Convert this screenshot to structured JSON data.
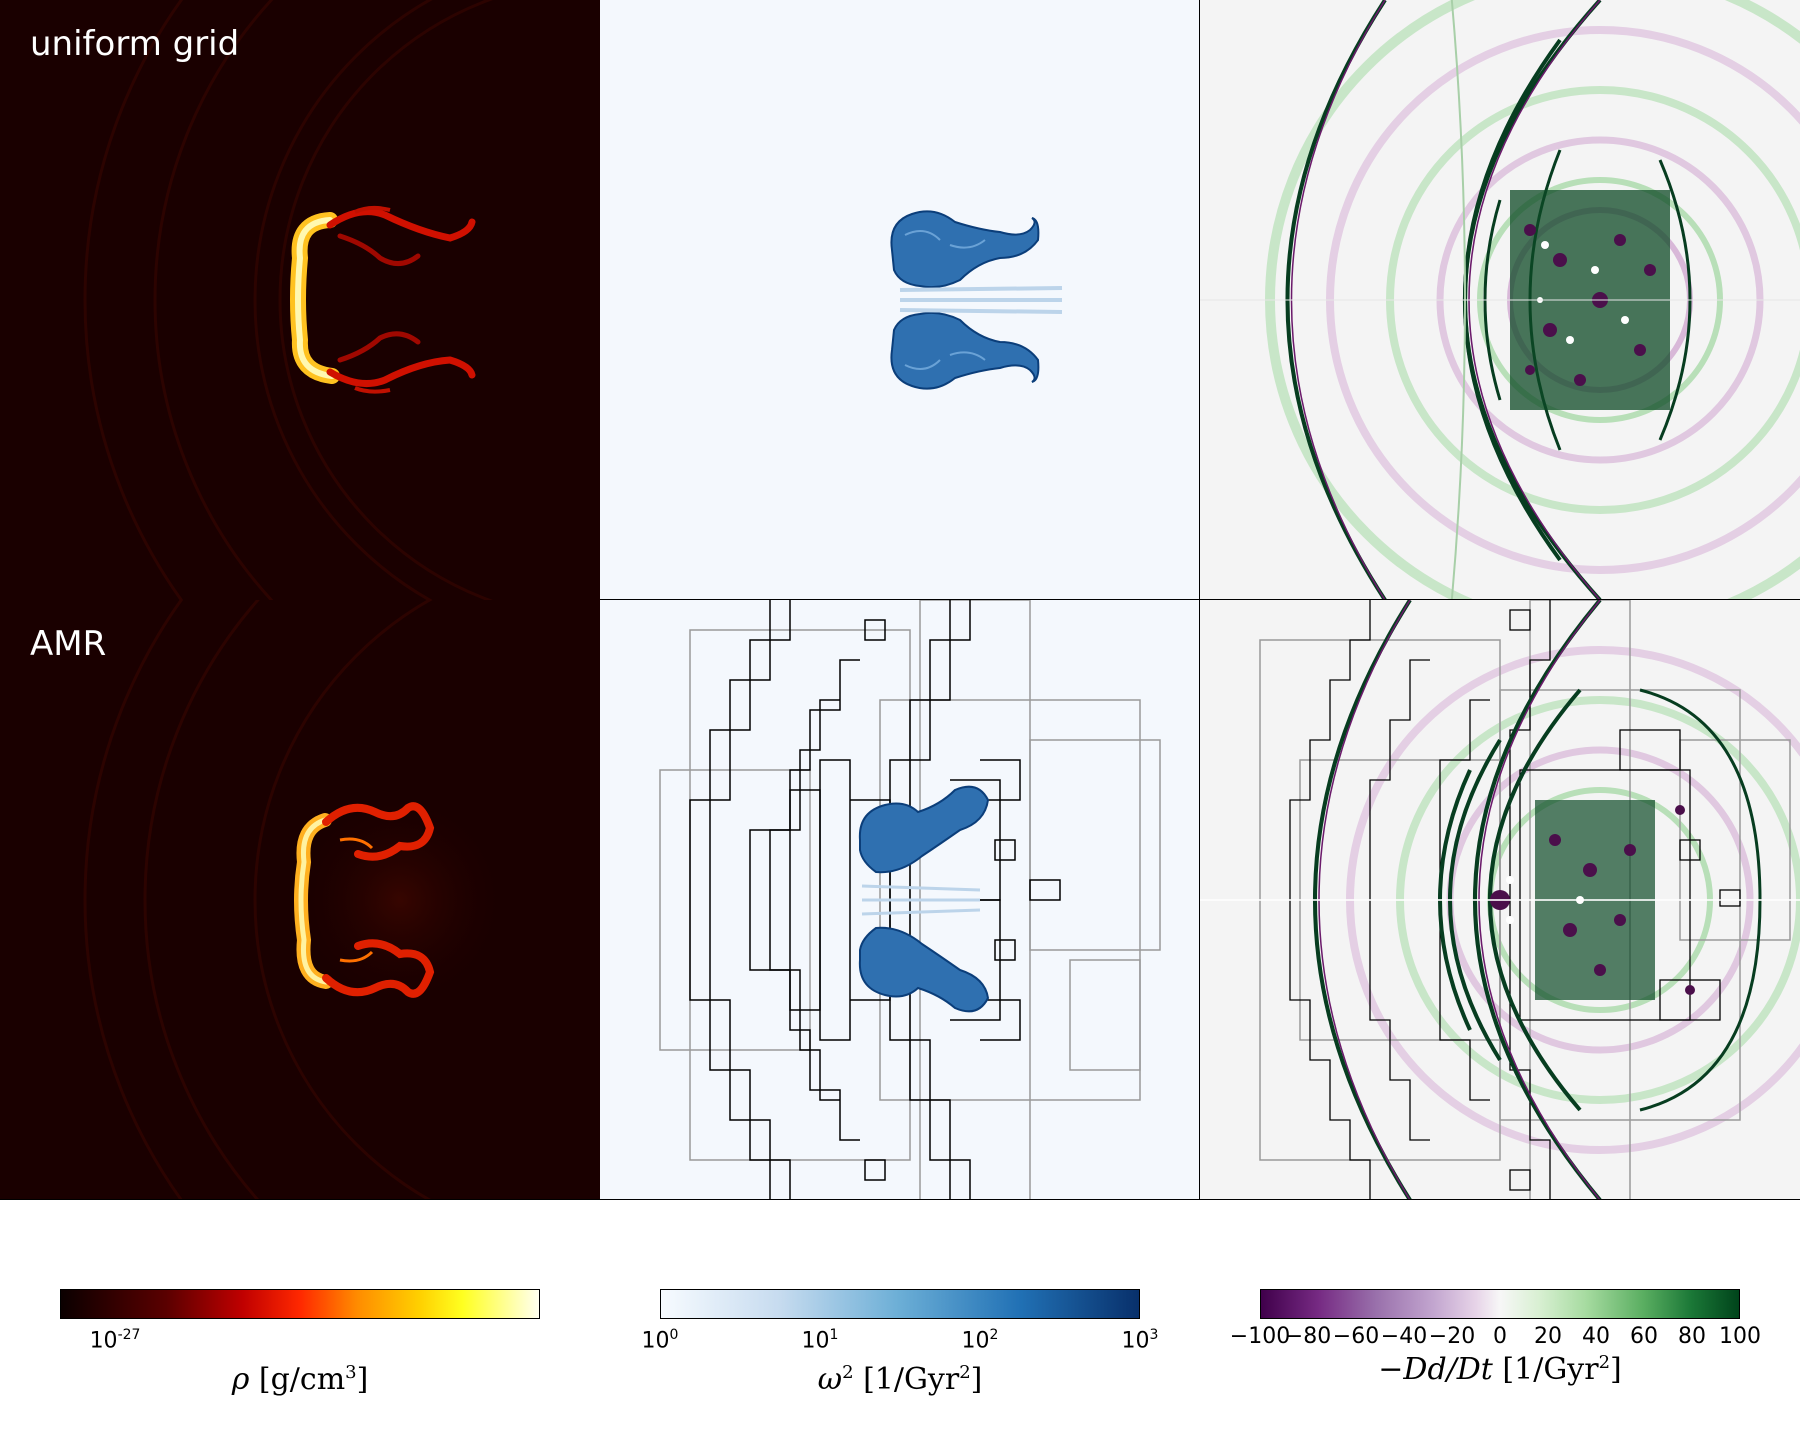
{
  "rows": {
    "top_label": "uniform grid",
    "bottom_label": "AMR"
  },
  "columns": [
    {
      "quantity": "density"
    },
    {
      "quantity": "vorticity squared"
    },
    {
      "quantity": "negative rate of change of divergence"
    }
  ],
  "colors": {
    "density_bg": "#1a0000",
    "vorticity_bg": "#f4f8fd",
    "divergence_bg": "#f4f4f4",
    "grid_lines": "#000000"
  },
  "colorbars": {
    "density": {
      "tick_label": "10",
      "tick_exponent": "-27",
      "label_symbol": "ρ",
      "label_unit": "[g/cm",
      "label_unit_exp": "3",
      "label_end": "]",
      "colormap": "hot"
    },
    "vorticity": {
      "ticks": [
        {
          "base": "10",
          "exp": "0"
        },
        {
          "base": "10",
          "exp": "1"
        },
        {
          "base": "10",
          "exp": "2"
        },
        {
          "base": "10",
          "exp": "3"
        }
      ],
      "label_symbol": "ω",
      "label_symbol_exp": "2",
      "label_unit": "[1/Gyr",
      "label_unit_exp": "2",
      "label_end": "]",
      "colormap": "Blues"
    },
    "divergence": {
      "ticks": [
        "−100",
        "−80",
        "−60",
        "−40",
        "−20",
        "0",
        "20",
        "40",
        "60",
        "80",
        "100"
      ],
      "label_main": "−Dd/Dt",
      "label_unit": "[1/Gyr",
      "label_unit_exp": "2",
      "label_end": "]",
      "colormap": "PRGn"
    }
  }
}
